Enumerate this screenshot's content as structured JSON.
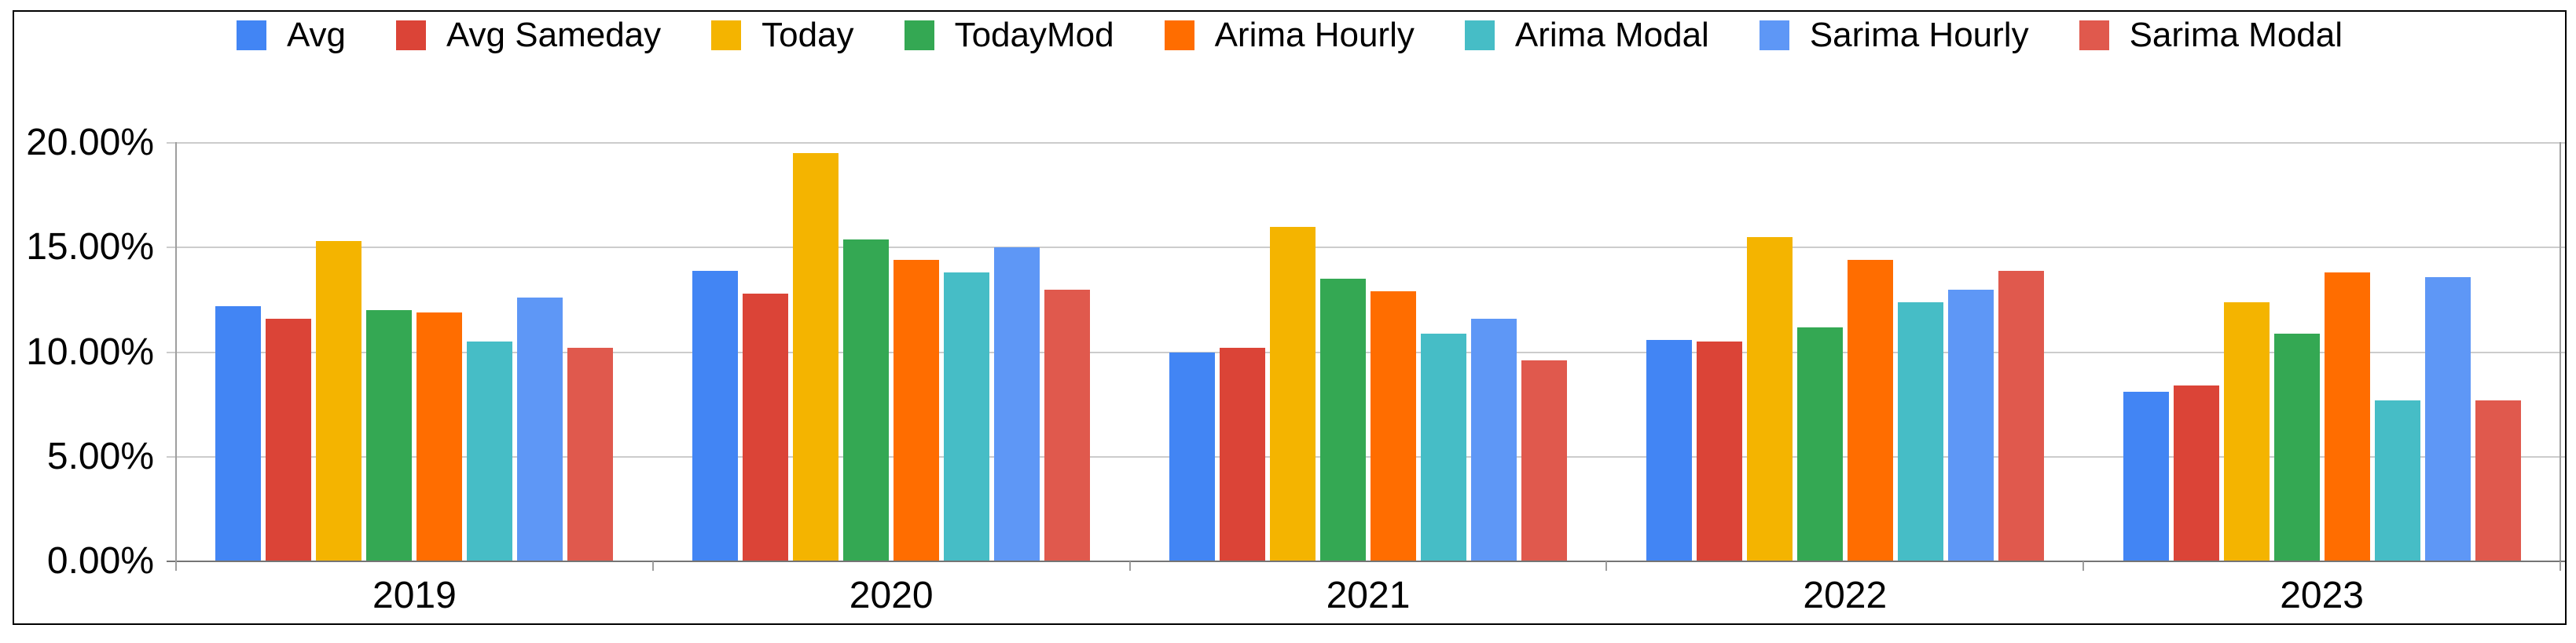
{
  "chart_data": {
    "type": "bar",
    "title": "",
    "xlabel": "",
    "ylabel": "",
    "categories": [
      "2019",
      "2020",
      "2021",
      "2022",
      "2023"
    ],
    "series": [
      {
        "name": "Avg",
        "color": "#4285F4",
        "values": [
          12.2,
          13.9,
          10.0,
          10.6,
          8.1
        ]
      },
      {
        "name": "Avg Sameday",
        "color": "#DB4437",
        "values": [
          11.6,
          12.8,
          10.2,
          10.5,
          8.4
        ]
      },
      {
        "name": "Today",
        "color": "#F4B400",
        "values": [
          15.3,
          19.5,
          16.0,
          15.5,
          12.4
        ]
      },
      {
        "name": "TodayMod",
        "color": "#34A853",
        "values": [
          12.0,
          15.4,
          13.5,
          11.2,
          10.9
        ]
      },
      {
        "name": "Arima Hourly",
        "color": "#FF6D00",
        "values": [
          11.9,
          14.4,
          12.9,
          14.4,
          13.8
        ]
      },
      {
        "name": "Arima Modal",
        "color": "#46BDC6",
        "values": [
          10.5,
          13.8,
          10.9,
          12.4,
          7.7
        ]
      },
      {
        "name": "Sarima Hourly",
        "color": "#5E97F6",
        "values": [
          12.6,
          15.0,
          11.6,
          13.0,
          13.6
        ]
      },
      {
        "name": "Sarima Modal",
        "color": "#E0594D",
        "values": [
          10.2,
          13.0,
          9.6,
          13.9,
          7.7
        ]
      }
    ],
    "ylim": [
      0,
      20
    ],
    "ytick_step": 5,
    "ytick_labels": [
      "0.00%",
      "5.00%",
      "10.00%",
      "15.00%",
      "20.00%"
    ],
    "grid": true,
    "legend_position": "top"
  },
  "colors": {
    "background": "#ffffff",
    "frame_border": "#000000",
    "gridline": "#cccccc",
    "baseline": "#757575",
    "axis_line": "#9e9e9e",
    "text": "#000000"
  }
}
